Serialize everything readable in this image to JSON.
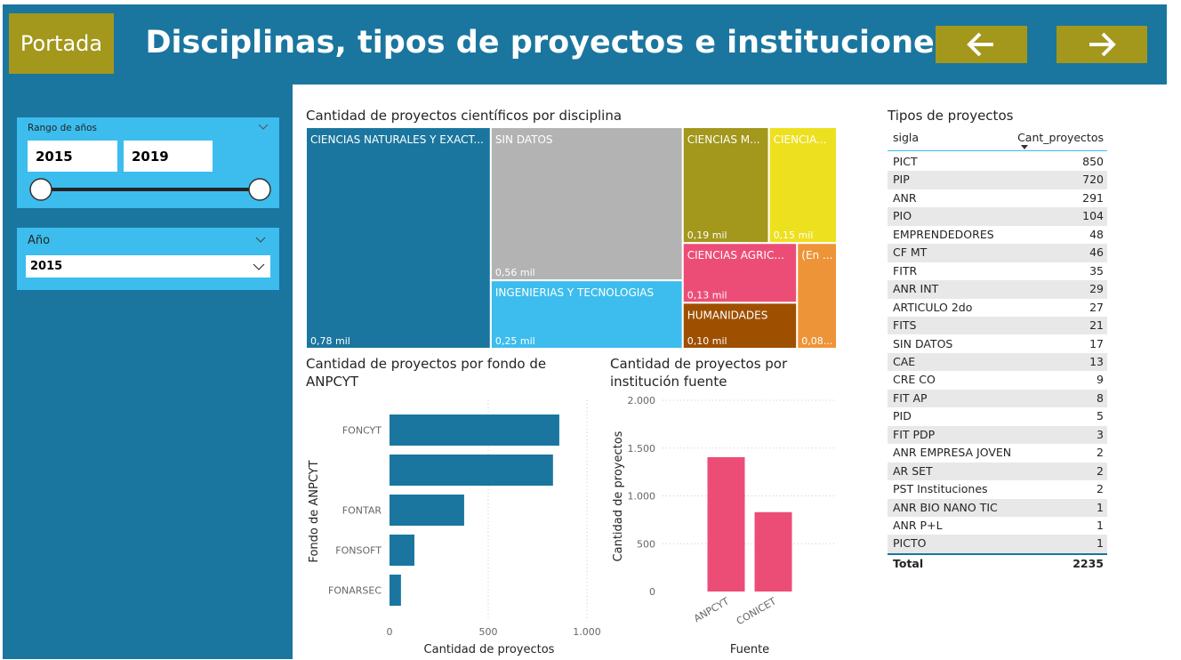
{
  "header": {
    "home_button": "Portada",
    "title": "Disciplinas, tipos de proyectos e instituciones"
  },
  "slicers": [
    {
      "title": "Rango de años",
      "from": 2015,
      "to": 2019
    },
    {
      "title": "Año",
      "selected": 2015
    }
  ],
  "table": {
    "title": "Tipos de proyectos",
    "columns": [
      "sigla",
      "Cant_proyectos"
    ],
    "rows": [
      [
        "PICT",
        850
      ],
      [
        "PIP",
        720
      ],
      [
        "ANR",
        291
      ],
      [
        "PIO",
        104
      ],
      [
        "EMPRENDEDORES",
        48
      ],
      [
        "CF MT",
        46
      ],
      [
        "FITR",
        35
      ],
      [
        "ANR INT",
        29
      ],
      [
        "ARTICULO 2do",
        27
      ],
      [
        "FITS",
        21
      ],
      [
        "SIN DATOS",
        17
      ],
      [
        "CAE",
        13
      ],
      [
        "CRE CO",
        9
      ],
      [
        "FIT AP",
        8
      ],
      [
        "PID",
        5
      ],
      [
        "FIT PDP",
        3
      ],
      [
        "ANR EMPRESA JOVEN",
        2
      ],
      [
        "AR SET",
        2
      ],
      [
        "PST Instituciones",
        2
      ],
      [
        "ANR BIO NANO TIC",
        1
      ],
      [
        "ANR P+L",
        1
      ],
      [
        "PICTO",
        1
      ]
    ],
    "total": [
      "Total",
      2235
    ]
  },
  "chart_data": [
    {
      "type": "treemap",
      "title": "Cantidad de proyectos científicos por disciplina",
      "categories": [
        "CIENCIAS NATURALES Y EXACT...",
        "SIN DATOS",
        "INGENIERIAS Y TECNOLOGIAS",
        "CIENCIAS M...",
        "CIENCIA...",
        "CIENCIAS AGRIC...",
        "HUMANIDADES",
        "(En ..."
      ],
      "values": [
        780,
        560,
        250,
        190,
        150,
        130,
        100,
        80
      ],
      "value_labels": [
        "0,78 mil",
        "0,56 mil",
        "0,25 mil",
        "0,19 mil",
        "0,15 mil",
        "0,13 mil",
        "0,10 mil",
        "0,08..."
      ],
      "colors": [
        "#1a769f",
        "#b3b3b3",
        "#3cbdee",
        "#a3971c",
        "#ede01f",
        "#ec4d77",
        "#9e5000",
        "#ee9438"
      ]
    },
    {
      "type": "bar",
      "title": "Cantidad de proyectos por fondo de ANPCYT",
      "x_label": "Cantidad de proyectos",
      "y_label": "Fondo de ANPCYT",
      "categories": [
        "FONCYT",
        null,
        "FONTAR",
        "FONSOFT",
        "FONARSEC"
      ],
      "values": [
        860,
        828,
        378,
        126,
        58
      ],
      "color": "#1a769f",
      "xlim": [
        0,
        1000
      ],
      "xticks": [
        0,
        500,
        {
          "value": 1000,
          "label": "1.000"
        }
      ],
      "grid": true
    },
    {
      "type": "column",
      "title": "Cantidad de proyectos por institución fuente",
      "x_label": "Fuente",
      "y_label": "Cantidad de proyectos",
      "categories": [
        "ANPCYT",
        "CONICET"
      ],
      "values": [
        1405,
        830
      ],
      "color": "#ec4d77",
      "ylim": [
        0,
        2000
      ],
      "yticks": [
        0,
        500,
        {
          "value": 1000,
          "label": "1.000"
        },
        {
          "value": 1500,
          "label": "1.500"
        },
        {
          "value": 2000,
          "label": "2.000"
        }
      ],
      "grid": true
    }
  ]
}
